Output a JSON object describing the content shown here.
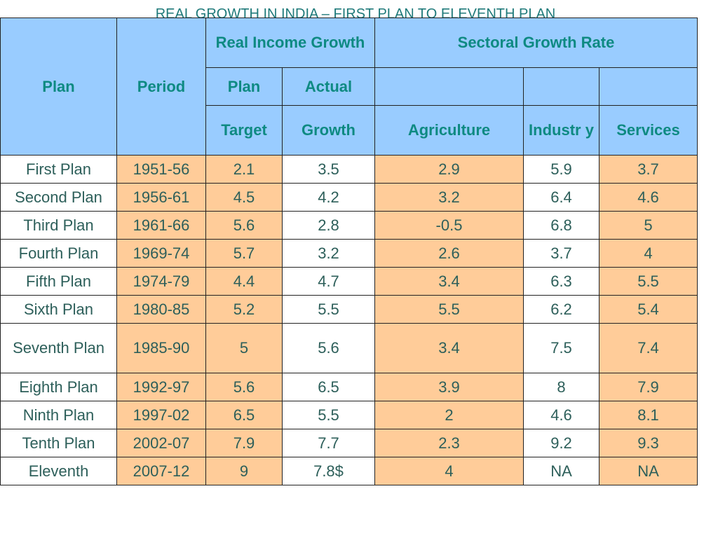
{
  "title": "REAL GROWTH IN INDIA – FIRST PLAN TO ELEVENTH PLAN",
  "header": {
    "plan": "Plan",
    "period": "Period",
    "real_income_growth": "Real Income Growth",
    "sectoral_growth_rate": "Sectoral Growth Rate",
    "plan_sub": "Plan",
    "actual_sub": "Actual",
    "target": "Target",
    "growth": "Growth",
    "agriculture": "Agriculture",
    "industry": "Industr y",
    "services": "Services"
  },
  "rows": [
    {
      "plan": "First Plan",
      "period": "1951-56",
      "target": "2.1",
      "actual": "3.5",
      "agriculture": "2.9",
      "industry": "5.9",
      "services": "3.7"
    },
    {
      "plan": "Second Plan",
      "period": "1956-61",
      "target": "4.5",
      "actual": "4.2",
      "agriculture": "3.2",
      "industry": "6.4",
      "services": "4.6"
    },
    {
      "plan": "Third Plan",
      "period": "1961-66",
      "target": "5.6",
      "actual": "2.8",
      "agriculture": "-0.5",
      "industry": "6.8",
      "services": "5"
    },
    {
      "plan": "Fourth Plan",
      "period": "1969-74",
      "target": "5.7",
      "actual": "3.2",
      "agriculture": "2.6",
      "industry": "3.7",
      "services": "4"
    },
    {
      "plan": "Fifth Plan",
      "period": "1974-79",
      "target": "4.4",
      "actual": "4.7",
      "agriculture": "3.4",
      "industry": "6.3",
      "services": "5.5"
    },
    {
      "plan": "Sixth Plan",
      "period": "1980-85",
      "target": "5.2",
      "actual": "5.5",
      "agriculture": "5.5",
      "industry": "6.2",
      "services": "5.4"
    },
    {
      "plan": "Seventh Plan",
      "period": "1985-90",
      "target": "5",
      "actual": "5.6",
      "agriculture": "3.4",
      "industry": "7.5",
      "services": "7.4"
    },
    {
      "plan": "Eighth Plan",
      "period": "1992-97",
      "target": "5.6",
      "actual": "6.5",
      "agriculture": "3.9",
      "industry": "8",
      "services": "7.9"
    },
    {
      "plan": "Ninth Plan",
      "period": "1997-02",
      "target": "6.5",
      "actual": "5.5",
      "agriculture": "2",
      "industry": "4.6",
      "services": "8.1"
    },
    {
      "plan": "Tenth Plan",
      "period": "2002-07",
      "target": "7.9",
      "actual": "7.7",
      "agriculture": "2.3",
      "industry": "9.2",
      "services": "9.3"
    },
    {
      "plan": "Eleventh",
      "period": "2007-12",
      "target": "9",
      "actual": "7.8$",
      "agriculture": "4",
      "industry": "NA",
      "services": "NA"
    }
  ],
  "colors": {
    "header_bg": "#99ccff",
    "header_text": "#0e8a82",
    "peach_cell": "#ffcc99",
    "body_text": "#2d5f5a",
    "title_text": "#1f7a7a"
  }
}
